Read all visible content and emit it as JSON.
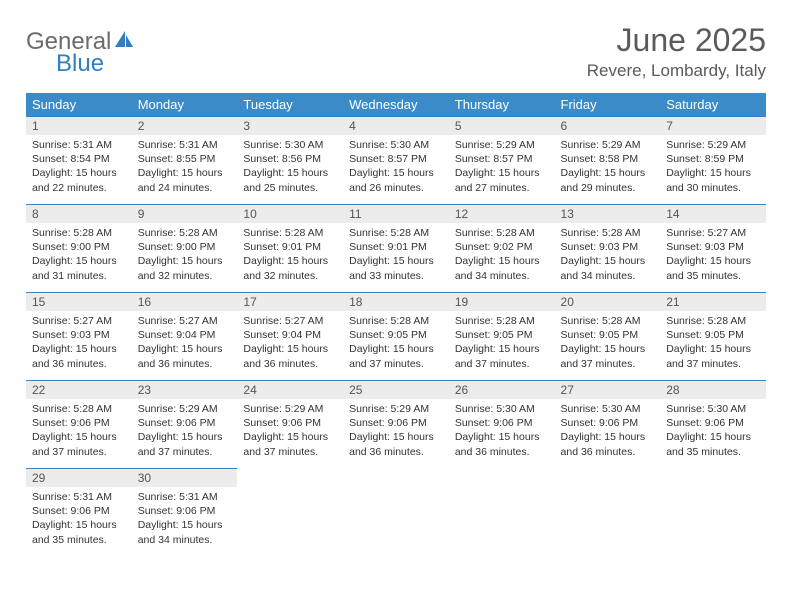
{
  "logo": {
    "word1": "General",
    "word2": "Blue",
    "word1_color": "#6b6b6b",
    "word2_color": "#2f7fc1",
    "sail_color": "#2f7fc1"
  },
  "title": "June 2025",
  "location": "Revere, Lombardy, Italy",
  "colors": {
    "header_bg": "#3b8bc9",
    "header_text": "#ffffff",
    "daynum_bg": "#ececec",
    "daynum_border": "#2f7fc1",
    "body_text": "#333333",
    "page_bg": "#ffffff"
  },
  "columns": [
    "Sunday",
    "Monday",
    "Tuesday",
    "Wednesday",
    "Thursday",
    "Friday",
    "Saturday"
  ],
  "weeks": [
    [
      {
        "n": "1",
        "sunrise": "5:31 AM",
        "sunset": "8:54 PM",
        "dl": "15 hours and 22 minutes."
      },
      {
        "n": "2",
        "sunrise": "5:31 AM",
        "sunset": "8:55 PM",
        "dl": "15 hours and 24 minutes."
      },
      {
        "n": "3",
        "sunrise": "5:30 AM",
        "sunset": "8:56 PM",
        "dl": "15 hours and 25 minutes."
      },
      {
        "n": "4",
        "sunrise": "5:30 AM",
        "sunset": "8:57 PM",
        "dl": "15 hours and 26 minutes."
      },
      {
        "n": "5",
        "sunrise": "5:29 AM",
        "sunset": "8:57 PM",
        "dl": "15 hours and 27 minutes."
      },
      {
        "n": "6",
        "sunrise": "5:29 AM",
        "sunset": "8:58 PM",
        "dl": "15 hours and 29 minutes."
      },
      {
        "n": "7",
        "sunrise": "5:29 AM",
        "sunset": "8:59 PM",
        "dl": "15 hours and 30 minutes."
      }
    ],
    [
      {
        "n": "8",
        "sunrise": "5:28 AM",
        "sunset": "9:00 PM",
        "dl": "15 hours and 31 minutes."
      },
      {
        "n": "9",
        "sunrise": "5:28 AM",
        "sunset": "9:00 PM",
        "dl": "15 hours and 32 minutes."
      },
      {
        "n": "10",
        "sunrise": "5:28 AM",
        "sunset": "9:01 PM",
        "dl": "15 hours and 32 minutes."
      },
      {
        "n": "11",
        "sunrise": "5:28 AM",
        "sunset": "9:01 PM",
        "dl": "15 hours and 33 minutes."
      },
      {
        "n": "12",
        "sunrise": "5:28 AM",
        "sunset": "9:02 PM",
        "dl": "15 hours and 34 minutes."
      },
      {
        "n": "13",
        "sunrise": "5:28 AM",
        "sunset": "9:03 PM",
        "dl": "15 hours and 34 minutes."
      },
      {
        "n": "14",
        "sunrise": "5:27 AM",
        "sunset": "9:03 PM",
        "dl": "15 hours and 35 minutes."
      }
    ],
    [
      {
        "n": "15",
        "sunrise": "5:27 AM",
        "sunset": "9:03 PM",
        "dl": "15 hours and 36 minutes."
      },
      {
        "n": "16",
        "sunrise": "5:27 AM",
        "sunset": "9:04 PM",
        "dl": "15 hours and 36 minutes."
      },
      {
        "n": "17",
        "sunrise": "5:27 AM",
        "sunset": "9:04 PM",
        "dl": "15 hours and 36 minutes."
      },
      {
        "n": "18",
        "sunrise": "5:28 AM",
        "sunset": "9:05 PM",
        "dl": "15 hours and 37 minutes."
      },
      {
        "n": "19",
        "sunrise": "5:28 AM",
        "sunset": "9:05 PM",
        "dl": "15 hours and 37 minutes."
      },
      {
        "n": "20",
        "sunrise": "5:28 AM",
        "sunset": "9:05 PM",
        "dl": "15 hours and 37 minutes."
      },
      {
        "n": "21",
        "sunrise": "5:28 AM",
        "sunset": "9:05 PM",
        "dl": "15 hours and 37 minutes."
      }
    ],
    [
      {
        "n": "22",
        "sunrise": "5:28 AM",
        "sunset": "9:06 PM",
        "dl": "15 hours and 37 minutes."
      },
      {
        "n": "23",
        "sunrise": "5:29 AM",
        "sunset": "9:06 PM",
        "dl": "15 hours and 37 minutes."
      },
      {
        "n": "24",
        "sunrise": "5:29 AM",
        "sunset": "9:06 PM",
        "dl": "15 hours and 37 minutes."
      },
      {
        "n": "25",
        "sunrise": "5:29 AM",
        "sunset": "9:06 PM",
        "dl": "15 hours and 36 minutes."
      },
      {
        "n": "26",
        "sunrise": "5:30 AM",
        "sunset": "9:06 PM",
        "dl": "15 hours and 36 minutes."
      },
      {
        "n": "27",
        "sunrise": "5:30 AM",
        "sunset": "9:06 PM",
        "dl": "15 hours and 36 minutes."
      },
      {
        "n": "28",
        "sunrise": "5:30 AM",
        "sunset": "9:06 PM",
        "dl": "15 hours and 35 minutes."
      }
    ],
    [
      {
        "n": "29",
        "sunrise": "5:31 AM",
        "sunset": "9:06 PM",
        "dl": "15 hours and 35 minutes."
      },
      {
        "n": "30",
        "sunrise": "5:31 AM",
        "sunset": "9:06 PM",
        "dl": "15 hours and 34 minutes."
      },
      null,
      null,
      null,
      null,
      null
    ]
  ],
  "labels": {
    "sunrise": "Sunrise:",
    "sunset": "Sunset:",
    "daylight": "Daylight:"
  }
}
